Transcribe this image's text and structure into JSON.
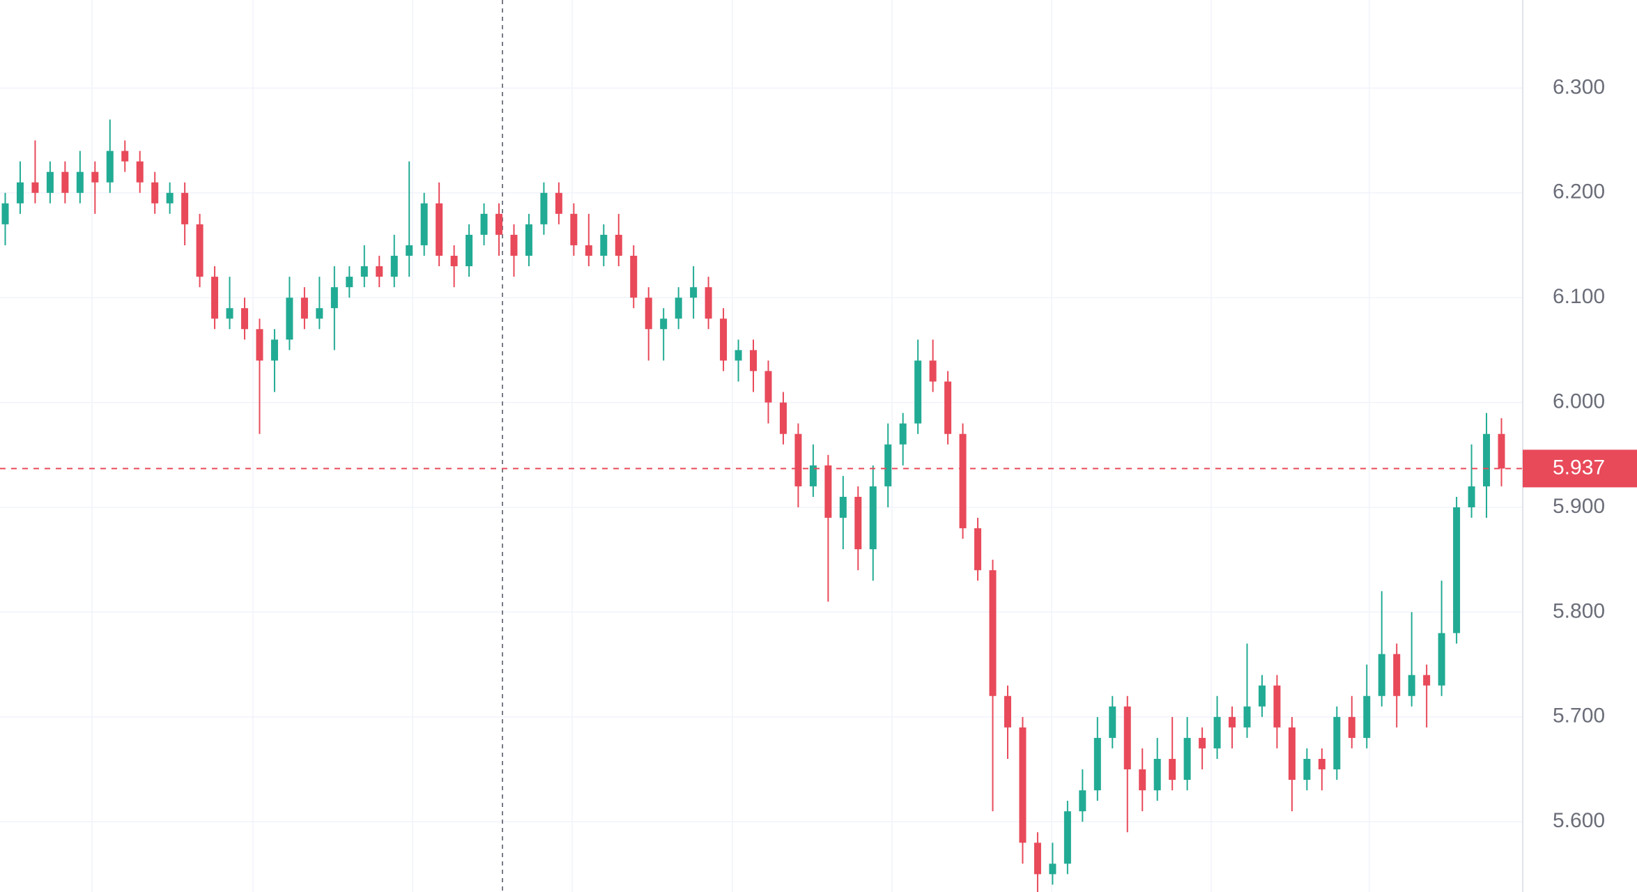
{
  "chart_data": {
    "type": "candlestick",
    "up_color": "#22ab94",
    "down_color": "#e84a5a",
    "ylim": [
      5.533,
      6.384
    ],
    "yticks": [
      {
        "value": 6.3,
        "label": "6.300"
      },
      {
        "value": 6.2,
        "label": "6.200"
      },
      {
        "value": 6.1,
        "label": "6.100"
      },
      {
        "value": 6.0,
        "label": "6.000"
      },
      {
        "value": 5.9,
        "label": "5.900"
      },
      {
        "value": 5.8,
        "label": "5.800"
      },
      {
        "value": 5.7,
        "label": "5.700"
      },
      {
        "value": 5.6,
        "label": "5.600"
      }
    ],
    "grid": true,
    "last_price": 5.937,
    "open": [
      6.17,
      6.19,
      6.21,
      6.2,
      6.22,
      6.2,
      6.22,
      6.21,
      6.24,
      6.23,
      6.21,
      6.19,
      6.2,
      6.17,
      6.12,
      6.08,
      6.09,
      6.07,
      6.04,
      6.06,
      6.1,
      6.08,
      6.09,
      6.11,
      6.12,
      6.13,
      6.12,
      6.14,
      6.15,
      6.19,
      6.14,
      6.13,
      6.16,
      6.18,
      6.16,
      6.14,
      6.17,
      6.2,
      6.18,
      6.15,
      6.14,
      6.16,
      6.14,
      6.1,
      6.07,
      6.08,
      6.1,
      6.11,
      6.08,
      6.04,
      6.05,
      6.03,
      6.0,
      5.97,
      5.92,
      5.94,
      5.89,
      5.91,
      5.86,
      5.92,
      5.96,
      5.98,
      6.04,
      6.02,
      5.97,
      5.88,
      5.84,
      5.72,
      5.69,
      5.58,
      5.55,
      5.56,
      5.61,
      5.63,
      5.68,
      5.71,
      5.65,
      5.63,
      5.66,
      5.64,
      5.68,
      5.67,
      5.7,
      5.69,
      5.71,
      5.73,
      5.69,
      5.64,
      5.66,
      5.65,
      5.7,
      5.68,
      5.72,
      5.76,
      5.72,
      5.74,
      5.73,
      5.78,
      5.9,
      5.92,
      5.97
    ],
    "high": [
      6.2,
      6.23,
      6.25,
      6.23,
      6.23,
      6.24,
      6.23,
      6.27,
      6.25,
      6.24,
      6.22,
      6.21,
      6.21,
      6.18,
      6.13,
      6.12,
      6.1,
      6.08,
      6.07,
      6.12,
      6.11,
      6.12,
      6.13,
      6.13,
      6.15,
      6.14,
      6.16,
      6.23,
      6.2,
      6.21,
      6.15,
      6.17,
      6.19,
      6.19,
      6.17,
      6.18,
      6.21,
      6.21,
      6.19,
      6.18,
      6.17,
      6.18,
      6.15,
      6.11,
      6.09,
      6.11,
      6.13,
      6.12,
      6.09,
      6.06,
      6.06,
      6.04,
      6.01,
      5.98,
      5.96,
      5.95,
      5.93,
      5.92,
      5.94,
      5.98,
      5.99,
      6.06,
      6.06,
      6.03,
      5.98,
      5.89,
      5.85,
      5.73,
      5.7,
      5.59,
      5.58,
      5.62,
      5.65,
      5.7,
      5.72,
      5.72,
      5.67,
      5.68,
      5.7,
      5.7,
      5.69,
      5.72,
      5.71,
      5.77,
      5.74,
      5.74,
      5.7,
      5.67,
      5.67,
      5.71,
      5.72,
      5.75,
      5.82,
      5.77,
      5.8,
      5.75,
      5.83,
      5.91,
      5.96,
      5.99,
      5.985
    ],
    "low": [
      6.15,
      6.18,
      6.19,
      6.19,
      6.19,
      6.19,
      6.18,
      6.2,
      6.22,
      6.2,
      6.18,
      6.18,
      6.15,
      6.11,
      6.07,
      6.07,
      6.06,
      5.97,
      6.01,
      6.05,
      6.07,
      6.07,
      6.05,
      6.1,
      6.11,
      6.11,
      6.11,
      6.12,
      6.14,
      6.13,
      6.11,
      6.12,
      6.15,
      6.14,
      6.12,
      6.13,
      6.16,
      6.17,
      6.14,
      6.13,
      6.13,
      6.13,
      6.09,
      6.04,
      6.04,
      6.07,
      6.08,
      6.07,
      6.03,
      6.02,
      6.01,
      5.98,
      5.96,
      5.9,
      5.91,
      5.81,
      5.86,
      5.84,
      5.83,
      5.9,
      5.94,
      5.97,
      6.01,
      5.96,
      5.87,
      5.83,
      5.61,
      5.66,
      5.56,
      5.53,
      5.54,
      5.55,
      5.6,
      5.62,
      5.67,
      5.59,
      5.61,
      5.62,
      5.63,
      5.63,
      5.65,
      5.66,
      5.67,
      5.68,
      5.7,
      5.67,
      5.61,
      5.63,
      5.63,
      5.64,
      5.67,
      5.67,
      5.71,
      5.69,
      5.71,
      5.69,
      5.72,
      5.77,
      5.89,
      5.89,
      5.92
    ],
    "close": [
      6.19,
      6.21,
      6.2,
      6.22,
      6.2,
      6.22,
      6.21,
      6.24,
      6.23,
      6.21,
      6.19,
      6.2,
      6.17,
      6.12,
      6.08,
      6.09,
      6.07,
      6.04,
      6.06,
      6.1,
      6.08,
      6.09,
      6.11,
      6.12,
      6.13,
      6.12,
      6.14,
      6.15,
      6.19,
      6.14,
      6.13,
      6.16,
      6.18,
      6.16,
      6.14,
      6.17,
      6.2,
      6.18,
      6.15,
      6.14,
      6.16,
      6.14,
      6.1,
      6.07,
      6.08,
      6.1,
      6.11,
      6.08,
      6.04,
      6.05,
      6.03,
      6.0,
      5.97,
      5.92,
      5.94,
      5.89,
      5.91,
      5.86,
      5.92,
      5.96,
      5.98,
      6.04,
      6.02,
      5.97,
      5.88,
      5.84,
      5.72,
      5.69,
      5.58,
      5.55,
      5.56,
      5.61,
      5.63,
      5.68,
      5.71,
      5.65,
      5.63,
      5.66,
      5.64,
      5.68,
      5.67,
      5.7,
      5.69,
      5.71,
      5.73,
      5.69,
      5.64,
      5.66,
      5.65,
      5.7,
      5.68,
      5.72,
      5.76,
      5.72,
      5.74,
      5.73,
      5.78,
      5.9,
      5.92,
      5.97,
      5.937
    ]
  }
}
